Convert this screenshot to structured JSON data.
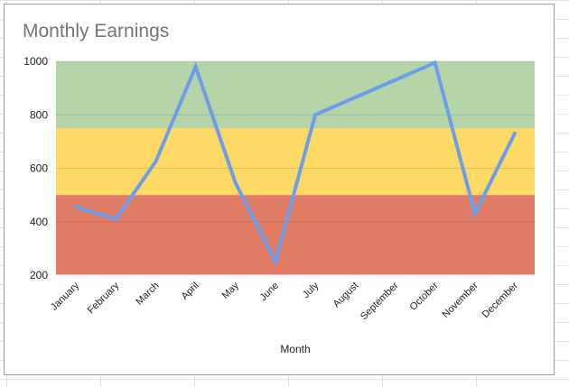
{
  "chart_data": {
    "type": "line",
    "title": "Monthly Earnings",
    "xlabel": "Month",
    "ylabel": "",
    "categories": [
      "January",
      "February",
      "March",
      "April",
      "May",
      "June",
      "July",
      "August",
      "September",
      "October",
      "November",
      "December"
    ],
    "series": [
      {
        "values": [
          455,
          410,
          625,
          980,
          545,
          250,
          800,
          865,
          930,
          995,
          430,
          730
        ],
        "color": "#6d9eeb"
      }
    ],
    "ylim": [
      200,
      1000
    ],
    "yticks": [
      200,
      400,
      600,
      800,
      1000
    ],
    "bands": [
      {
        "from": 200,
        "to": 500,
        "color": "#e07c66"
      },
      {
        "from": 500,
        "to": 750,
        "color": "#ffd966"
      },
      {
        "from": 750,
        "to": 1000,
        "color": "#b5d5a8"
      }
    ],
    "grid": true,
    "legend": "none"
  }
}
